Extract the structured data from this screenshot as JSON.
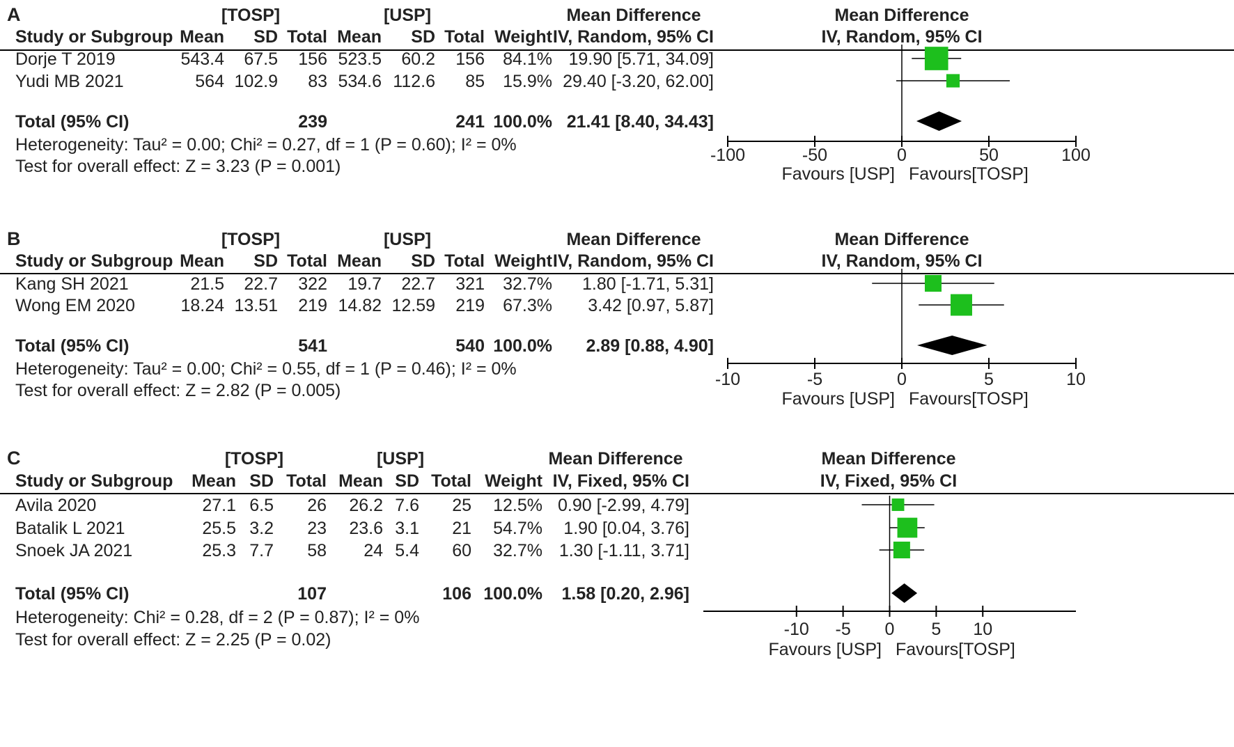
{
  "colors": {
    "text": "#222222",
    "marker": "#1dbf1d",
    "diamond": "#000000",
    "line": "#000000"
  },
  "chart_data": [
    {
      "type": "forest",
      "label": "A",
      "group1_label": "[TOSP]",
      "group2_label": "[USP]",
      "md_header": "Mean Difference",
      "method": "IV, Random, 95% CI",
      "col_headers": [
        "Study or Subgroup",
        "Mean",
        "SD",
        "Total",
        "Mean",
        "SD",
        "Total",
        "Weight"
      ],
      "studies": [
        {
          "name": "Dorje T 2019",
          "m1": "543.4",
          "sd1": "67.5",
          "n1": "156",
          "m2": "523.5",
          "sd2": "60.2",
          "n2": "156",
          "weight": "84.1%",
          "ci_text": "19.90 [5.71, 34.09]",
          "md": 19.9,
          "lo": 5.71,
          "hi": 34.09,
          "w": 84.1
        },
        {
          "name": "Yudi MB 2021",
          "m1": "564",
          "sd1": "102.9",
          "n1": "83",
          "m2": "534.6",
          "sd2": "112.6",
          "n2": "85",
          "weight": "15.9%",
          "ci_text": "29.40 [-3.20, 62.00]",
          "md": 29.4,
          "lo": -3.2,
          "hi": 62.0,
          "w": 15.9
        }
      ],
      "total": {
        "label": "Total (95% CI)",
        "n1": "239",
        "n2": "241",
        "weight": "100.0%",
        "ci_text": "21.41 [8.40, 34.43]",
        "md": 21.41,
        "lo": 8.4,
        "hi": 34.43
      },
      "heterogeneity": "Heterogeneity: Tau² = 0.00; Chi² = 0.27, df = 1 (P = 0.60); I² = 0%",
      "overall": "Test for overall effect: Z = 3.23 (P = 0.001)",
      "xlim": [
        -100,
        100
      ],
      "ticks": [
        -100,
        -50,
        0,
        50,
        100
      ],
      "tick_labels": [
        "-100",
        "-50",
        "0",
        "50",
        "100"
      ],
      "favours_left": "Favours [USP]",
      "favours_right": "Favours[TOSP]"
    },
    {
      "type": "forest",
      "label": "B",
      "group1_label": "[TOSP]",
      "group2_label": "[USP]",
      "md_header": "Mean Difference",
      "method": "IV, Random, 95% CI",
      "col_headers": [
        "Study or Subgroup",
        "Mean",
        "SD",
        "Total",
        "Mean",
        "SD",
        "Total",
        "Weight"
      ],
      "studies": [
        {
          "name": "Kang SH 2021",
          "m1": "21.5",
          "sd1": "22.7",
          "n1": "322",
          "m2": "19.7",
          "sd2": "22.7",
          "n2": "321",
          "weight": "32.7%",
          "ci_text": "1.80 [-1.71, 5.31]",
          "md": 1.8,
          "lo": -1.71,
          "hi": 5.31,
          "w": 32.7
        },
        {
          "name": "Wong EM 2020",
          "m1": "18.24",
          "sd1": "13.51",
          "n1": "219",
          "m2": "14.82",
          "sd2": "12.59",
          "n2": "219",
          "weight": "67.3%",
          "ci_text": "3.42 [0.97, 5.87]",
          "md": 3.42,
          "lo": 0.97,
          "hi": 5.87,
          "w": 67.3
        }
      ],
      "total": {
        "label": "Total (95% CI)",
        "n1": "541",
        "n2": "540",
        "weight": "100.0%",
        "ci_text": "2.89 [0.88, 4.90]",
        "md": 2.89,
        "lo": 0.88,
        "hi": 4.9
      },
      "heterogeneity": "Heterogeneity: Tau² = 0.00; Chi² = 0.55, df = 1 (P = 0.46); I² = 0%",
      "overall": "Test for overall effect: Z = 2.82 (P = 0.005)",
      "xlim": [
        -10,
        10
      ],
      "ticks": [
        -10,
        -5,
        0,
        5,
        10
      ],
      "tick_labels": [
        "-10",
        "-5",
        "0",
        "5",
        "10"
      ],
      "favours_left": "Favours [USP]",
      "favours_right": "Favours[TOSP]"
    },
    {
      "type": "forest",
      "label": "C",
      "group1_label": "[TOSP]",
      "group2_label": "[USP]",
      "md_header": "Mean Difference",
      "method": "IV, Fixed, 95% CI",
      "col_headers": [
        "Study or Subgroup",
        "Mean",
        "SD",
        "Total",
        "Mean",
        "SD",
        "Total",
        "Weight"
      ],
      "studies": [
        {
          "name": "Avila 2020",
          "m1": "27.1",
          "sd1": "6.5",
          "n1": "26",
          "m2": "26.2",
          "sd2": "7.6",
          "n2": "25",
          "weight": "12.5%",
          "ci_text": "0.90 [-2.99, 4.79]",
          "md": 0.9,
          "lo": -2.99,
          "hi": 4.79,
          "w": 12.5
        },
        {
          "name": "Batalik L 2021",
          "m1": "25.5",
          "sd1": "3.2",
          "n1": "23",
          "m2": "23.6",
          "sd2": "3.1",
          "n2": "21",
          "weight": "54.7%",
          "ci_text": "1.90 [0.04, 3.76]",
          "md": 1.9,
          "lo": 0.04,
          "hi": 3.76,
          "w": 54.7
        },
        {
          "name": "Snoek JA 2021",
          "m1": "25.3",
          "sd1": "7.7",
          "n1": "58",
          "m2": "24",
          "sd2": "5.4",
          "n2": "60",
          "weight": "32.7%",
          "ci_text": "1.30 [-1.11, 3.71]",
          "md": 1.3,
          "lo": -1.11,
          "hi": 3.71,
          "w": 32.7
        }
      ],
      "total": {
        "label": "Total (95% CI)",
        "n1": "107",
        "n2": "106",
        "weight": "100.0%",
        "ci_text": "1.58 [0.20, 2.96]",
        "md": 1.58,
        "lo": 0.2,
        "hi": 2.96
      },
      "heterogeneity": "Heterogeneity: Chi² = 0.28, df = 2 (P = 0.87); I² = 0%",
      "overall": "Test for overall effect: Z = 2.25 (P = 0.02)",
      "xlim": [
        -20,
        20
      ],
      "ticks": [
        -10,
        -5,
        0,
        5,
        10
      ],
      "tick_labels": [
        "-10",
        "-5",
        "0",
        "5",
        "10"
      ],
      "favours_left": "Favours [USP]",
      "favours_right": "Favours[TOSP]"
    }
  ]
}
